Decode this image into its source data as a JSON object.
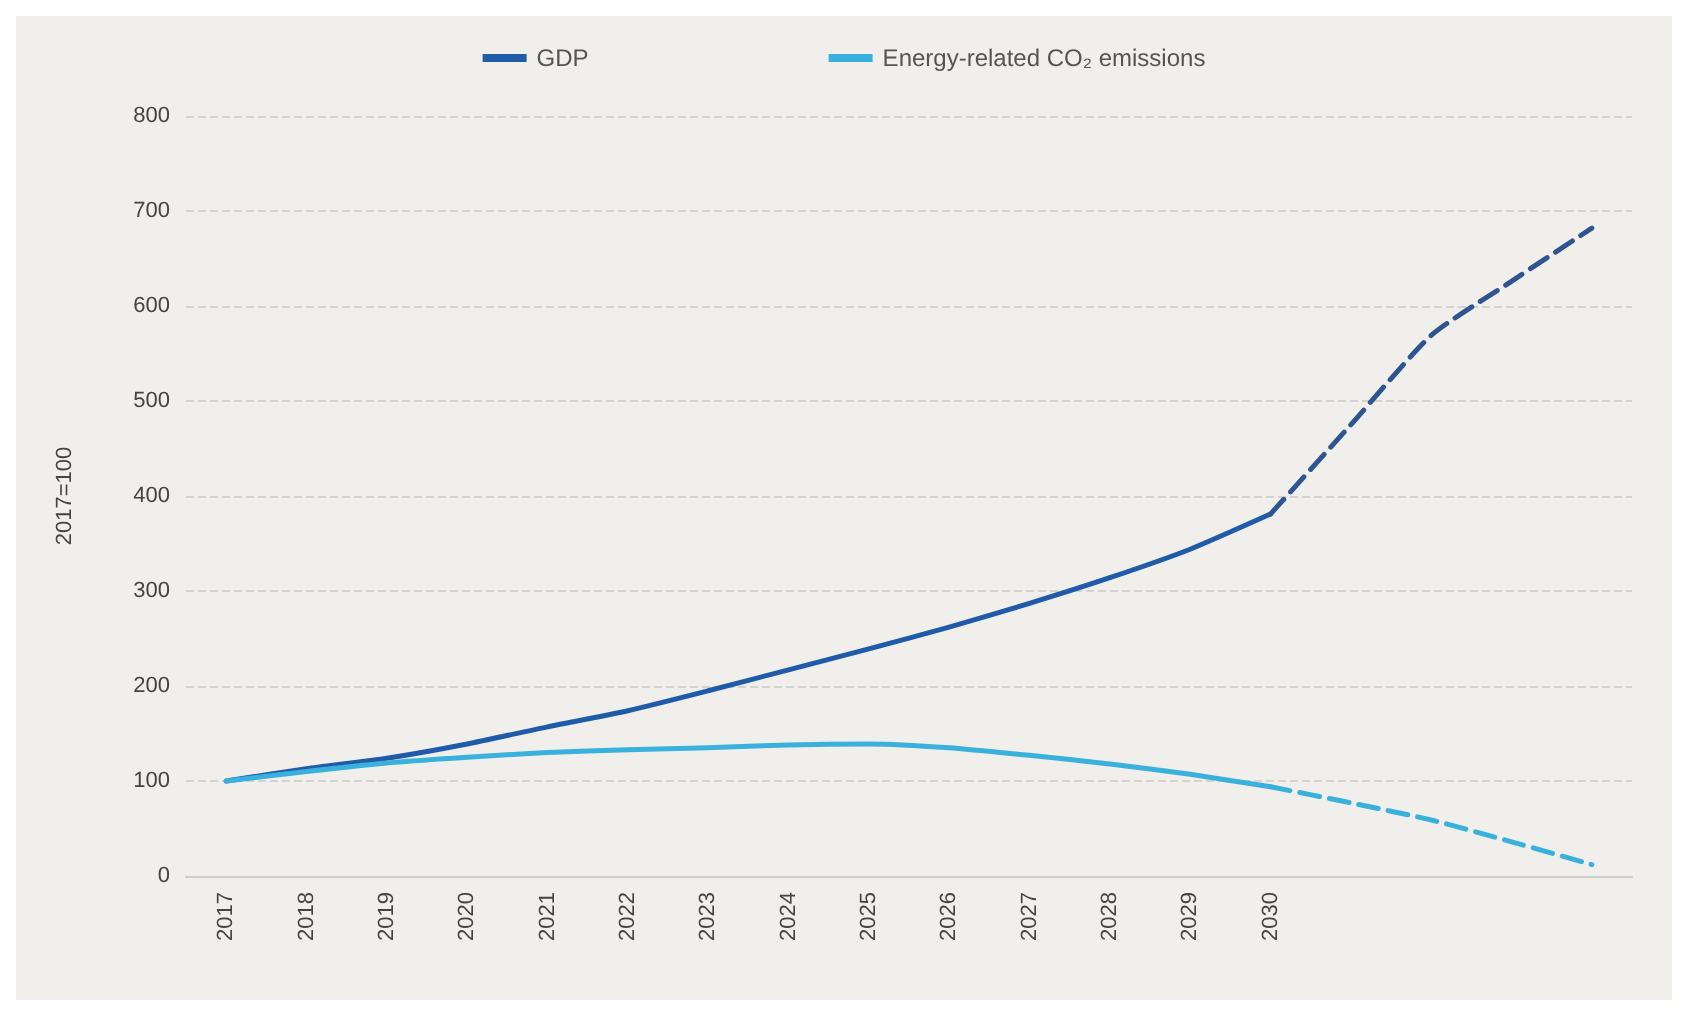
{
  "chart_data": {
    "type": "line",
    "ylabel": "2017=100",
    "categories": [
      "2017",
      "2018",
      "2019",
      "2020",
      "2021",
      "2022",
      "2023",
      "2024",
      "2025",
      "2026",
      "2027",
      "2028",
      "2029",
      "2030",
      null,
      null,
      null,
      null
    ],
    "series": [
      {
        "name": "GDP",
        "color": "#1f5ba8",
        "line_style": "solid",
        "values": [
          100,
          113,
          124,
          139,
          157,
          174,
          195,
          217,
          239,
          262,
          287,
          314,
          344,
          381,
          null,
          null,
          null,
          null
        ]
      },
      {
        "name": "Energy-related CO₂ emissions",
        "color": "#3ab0dc",
        "line_style": "solid",
        "values": [
          100,
          110,
          119,
          125,
          130,
          133,
          135,
          138,
          139,
          135,
          127,
          118,
          107,
          94,
          null,
          null,
          null,
          null
        ]
      },
      {
        "color": "#2f5590",
        "line_style": "dashed",
        "values": [
          null,
          null,
          null,
          null,
          null,
          null,
          null,
          null,
          null,
          null,
          null,
          null,
          null,
          381,
          475,
          569,
          626,
          682
        ]
      },
      {
        "color": "#3ab0dc",
        "line_style": "dashed",
        "values": [
          null,
          null,
          null,
          null,
          null,
          null,
          null,
          null,
          null,
          null,
          null,
          null,
          null,
          94,
          77,
          59,
          36,
          12
        ]
      }
    ],
    "ylim": [
      0,
      800
    ],
    "yticks": [
      0,
      100,
      200,
      300,
      400,
      500,
      600,
      700,
      800
    ],
    "grid": "y",
    "legend": "top",
    "marker": "none"
  }
}
